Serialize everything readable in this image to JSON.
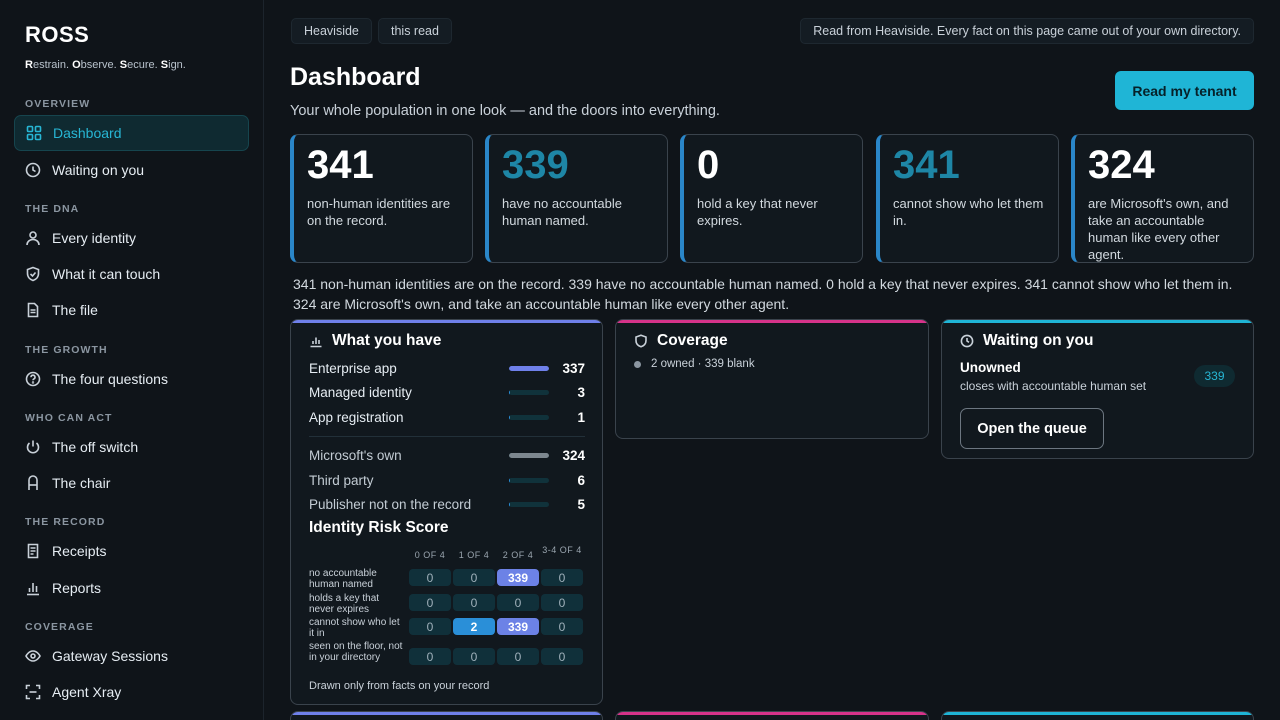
{
  "brand": {
    "name": "ROSS",
    "tagline_parts": [
      {
        "initial": "R",
        "rest": "estrain. "
      },
      {
        "initial": "O",
        "rest": "bserve. "
      },
      {
        "initial": "S",
        "rest": "ecure. "
      },
      {
        "initial": "S",
        "rest": "ign."
      }
    ]
  },
  "sidebar": {
    "sections": [
      {
        "heading": "OVERVIEW",
        "items": [
          {
            "label": "Dashboard",
            "icon": "grid-icon",
            "active": true
          },
          {
            "label": "Waiting on you",
            "icon": "clock-icon"
          }
        ]
      },
      {
        "heading": "THE DNA",
        "items": [
          {
            "label": "Every identity",
            "icon": "user-icon"
          },
          {
            "label": "What it can touch",
            "icon": "shield-check-icon"
          },
          {
            "label": "The file",
            "icon": "file-icon"
          }
        ]
      },
      {
        "heading": "THE GROWTH",
        "items": [
          {
            "label": "The four questions",
            "icon": "question-circle-icon"
          }
        ]
      },
      {
        "heading": "WHO CAN ACT",
        "items": [
          {
            "label": "The off switch",
            "icon": "power-icon"
          },
          {
            "label": "The chair",
            "icon": "chair-icon"
          }
        ]
      },
      {
        "heading": "THE RECORD",
        "items": [
          {
            "label": "Receipts",
            "icon": "receipt-icon"
          },
          {
            "label": "Reports",
            "icon": "bar-chart-icon"
          }
        ]
      },
      {
        "heading": "COVERAGE",
        "items": [
          {
            "label": "Gateway Sessions",
            "icon": "eye-icon"
          },
          {
            "label": "Agent Xray",
            "icon": "scan-icon"
          }
        ]
      }
    ]
  },
  "topbar": {
    "chips": [
      "Heaviside",
      "this read"
    ],
    "note": "Read from Heaviside. Every fact on this page came out of your own directory."
  },
  "header": {
    "title": "Dashboard",
    "subtitle": "Your whole population in one look — and the doors into everything.",
    "cta": "Read my tenant"
  },
  "stats": [
    {
      "value": "341",
      "label": "non-human identities are on the record.",
      "teal": false
    },
    {
      "value": "339",
      "label": "have no accountable human named.",
      "teal": true
    },
    {
      "value": "0",
      "label": "hold a key that never expires.",
      "teal": false
    },
    {
      "value": "341",
      "label": "cannot show who let them in.",
      "teal": true
    },
    {
      "value": "324",
      "label": "are Microsoft's own, and take an accountable human like every other agent.",
      "teal": false
    }
  ],
  "summary": "341 non-human identities are on the record. 339 have no accountable human named. 0 hold a key that never expires. 341 cannot show who let them in. 324 are Microsoft's own, and take an accountable human like every other agent.",
  "what_you_have": {
    "title": "What you have",
    "types": [
      {
        "label": "Enterprise app",
        "value": "337",
        "fraction": 0.99,
        "color": "#6f80ea"
      },
      {
        "label": "Managed identity",
        "value": "3",
        "fraction": 0.02,
        "color": "#2a8fd8"
      },
      {
        "label": "App registration",
        "value": "1",
        "fraction": 0.01,
        "color": "#2a8fd8"
      }
    ],
    "origins": [
      {
        "label": "Microsoft's own",
        "value": "324",
        "fraction": 0.99,
        "color": "#7d878f"
      },
      {
        "label": "Third party",
        "value": "6",
        "fraction": 0.02,
        "color": "#2a8fd8"
      },
      {
        "label": "Publisher not on the record",
        "value": "5",
        "fraction": 0.02,
        "color": "#2a8fd8"
      }
    ],
    "risk": {
      "title": "Identity Risk Score",
      "columns": [
        "0 OF 4",
        "1 OF 4",
        "2 OF 4",
        "3-4 OF 4"
      ],
      "rows": [
        {
          "label": "no accountable human named",
          "cells": [
            "0",
            "0",
            "339",
            "0"
          ],
          "highlight": [
            0,
            0,
            1,
            0
          ]
        },
        {
          "label": "holds a key that never expires",
          "cells": [
            "0",
            "0",
            "0",
            "0"
          ],
          "highlight": [
            0,
            0,
            0,
            0
          ]
        },
        {
          "label": "cannot show who let it in",
          "cells": [
            "0",
            "2",
            "339",
            "0"
          ],
          "highlight": [
            0,
            2,
            1,
            0
          ]
        },
        {
          "label": "seen on the floor, not in your directory",
          "cells": [
            "0",
            "0",
            "0",
            "0"
          ],
          "highlight": [
            0,
            0,
            0,
            0
          ]
        }
      ],
      "footnote": "Drawn only from facts on your record"
    }
  },
  "coverage": {
    "title": "Coverage",
    "line": "2 owned · 339 blank"
  },
  "waiting": {
    "title": "Waiting on you",
    "item_title": "Unowned",
    "item_sub": "closes with accountable human set",
    "count": "339",
    "button": "Open the queue"
  },
  "colors": {
    "accent": "#1fb5d6",
    "what_you_have_bar": "#6f80ea",
    "coverage_bar": "#d6338a",
    "waiting_bar": "#1fb5d6"
  }
}
